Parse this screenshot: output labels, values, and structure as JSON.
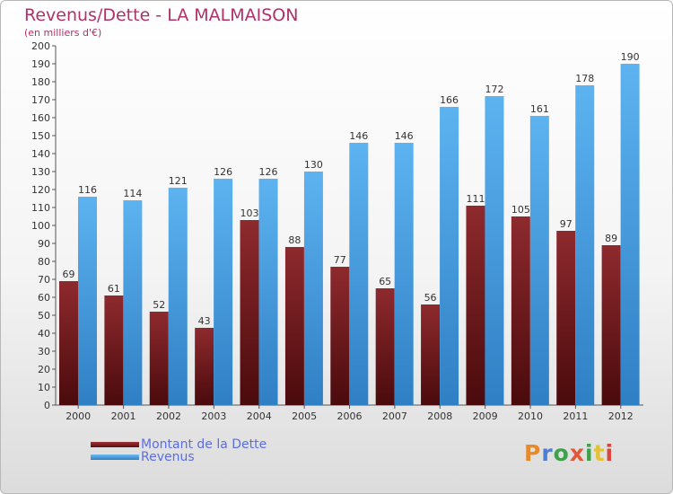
{
  "title": "Revenus/Dette - LA MALMAISON",
  "subtitle": "(en milliers d'€)",
  "logo": {
    "text": "Proxiti",
    "colors": [
      "#e88a2c",
      "#4b7fd6",
      "#3da24a",
      "#e0593a",
      "#3da24a",
      "#e3c23a",
      "#d9463b"
    ]
  },
  "chart_data": {
    "type": "bar",
    "categories": [
      "2000",
      "2001",
      "2002",
      "2003",
      "2004",
      "2005",
      "2006",
      "2007",
      "2008",
      "2009",
      "2010",
      "2011",
      "2012"
    ],
    "series": [
      {
        "name": "Montant de la Dette",
        "color": "#7a1e22",
        "values": [
          69,
          61,
          52,
          43,
          103,
          88,
          77,
          65,
          56,
          111,
          105,
          97,
          89
        ]
      },
      {
        "name": "Revenus",
        "color": "#4aa3e6",
        "values": [
          116,
          114,
          121,
          126,
          126,
          130,
          146,
          146,
          166,
          172,
          161,
          178,
          190
        ]
      }
    ],
    "ylim": [
      0,
      200
    ],
    "yticks": [
      0,
      10,
      20,
      30,
      40,
      50,
      60,
      70,
      80,
      90,
      100,
      110,
      120,
      130,
      140,
      150,
      160,
      170,
      180,
      190,
      200
    ],
    "grid": false,
    "legend": "bottom-left"
  }
}
